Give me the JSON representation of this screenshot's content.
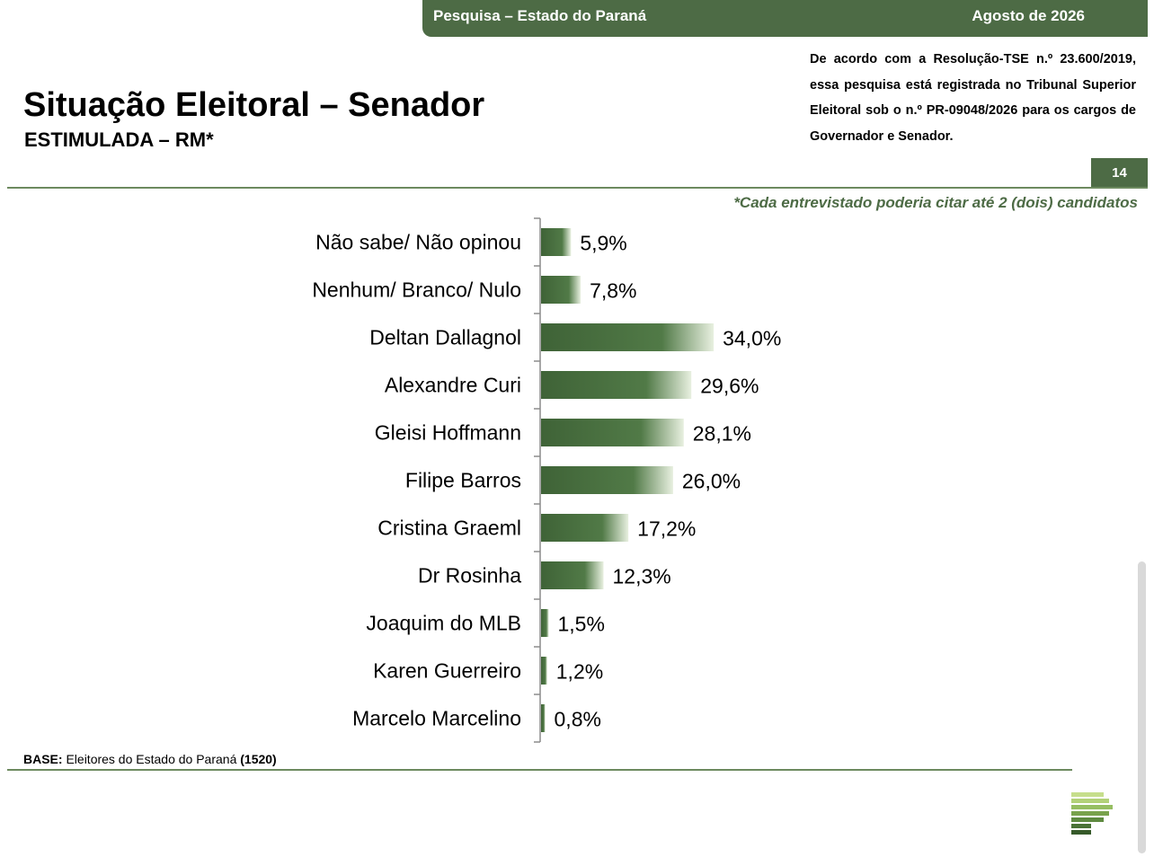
{
  "header": {
    "survey": "Pesquisa – Estado do Paraná",
    "date": "Agosto de 2026"
  },
  "title": "Situação Eleitoral – Senador",
  "subtitle": "ESTIMULADA – RM*",
  "notice": "De acordo com a Resolução-TSE n.º 23.600/2019, essa pesquisa está registrada no Tribunal Superior Eleitoral sob o n.º PR-09048/2026 para os cargos de Governador e Senador.",
  "page_number": "14",
  "footnote": "*Cada entrevistado poderia citar até 2 (dois) candidatos",
  "base": {
    "label": "BASE:",
    "text": "Eleitores do Estado do Paraná",
    "count": "(1520)"
  },
  "colors": {
    "brand_green": "#4d6b45",
    "bar_dark": "#3f6337",
    "bar_light": "#e8f0e0"
  },
  "chart_data": {
    "type": "bar",
    "orientation": "horizontal",
    "categories": [
      "Não sabe/ Não opinou",
      "Nenhum/ Branco/ Nulo",
      "Deltan Dallagnol",
      "Alexandre Curi",
      "Gleisi Hoffmann",
      "Filipe Barros",
      "Cristina Graeml",
      "Dr Rosinha",
      "Joaquim do MLB",
      "Karen Guerreiro",
      "Marcelo Marcelino"
    ],
    "values": [
      5.9,
      7.8,
      34.0,
      29.6,
      28.1,
      26.0,
      17.2,
      12.3,
      1.5,
      1.2,
      0.8
    ],
    "value_labels": [
      "5,9%",
      "7,8%",
      "34,0%",
      "29,6%",
      "28,1%",
      "26,0%",
      "17,2%",
      "12,3%",
      "1,5%",
      "1,2%",
      "0,8%"
    ],
    "unit": "%",
    "grid": false,
    "legend": "none"
  }
}
